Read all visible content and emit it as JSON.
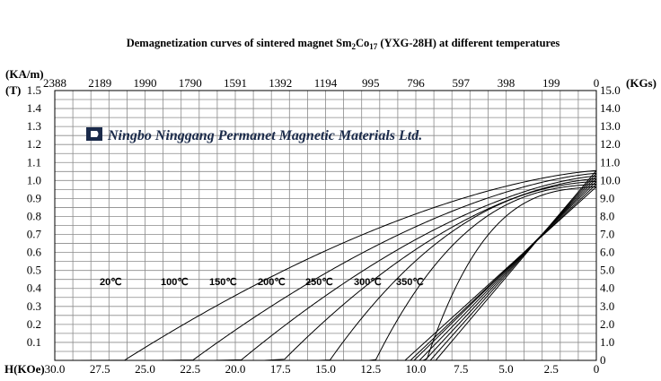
{
  "chart_data": {
    "type": "line",
    "title_main": "Demagnetization curves of sintered magnet Sm",
    "title_sub1": "2",
    "title_co": "Co",
    "title_sub2": "17",
    "title_grade": " (YXG-28H) at different temperatures",
    "watermark": "Ningbo Ninggang Permanet Magnetic Materials Ltd.",
    "top_axis_unit": "(KA/m)",
    "left_axis_unit": "(T)",
    "right_axis_unit": "(KGs)",
    "bottom_axis_unit": "H(KOe)",
    "x_ticks_koe": [
      "30.0",
      "27.5",
      "25.0",
      "22.5",
      "20.0",
      "17.5",
      "15.0",
      "12.5",
      "10.0",
      "7.5",
      "5.0",
      "2.5",
      "0"
    ],
    "x_ticks_kam": [
      "2388",
      "2189",
      "1990",
      "1790",
      "1591",
      "1392",
      "1194",
      "995",
      "796",
      "597",
      "398",
      "199",
      "0"
    ],
    "y_ticks_t": [
      "1.5",
      "1.4",
      "1.3",
      "1.2",
      "1.1",
      "1.0",
      "0.9",
      "0.8",
      "0.7",
      "0.6",
      "0.5",
      "0.4",
      "0.3",
      "0.2",
      "0.1"
    ],
    "y_ticks_kgs": [
      "15.0",
      "14.0",
      "13.0",
      "12.0",
      "11.0",
      "10.0",
      "9.0",
      "8.0",
      "7.0",
      "6.0",
      "5.0",
      "4.0",
      "3.0",
      "2.0",
      "1.0",
      "0"
    ],
    "xlim_koe": [
      30,
      0
    ],
    "ylim_t": [
      0,
      1.5
    ],
    "grid": true,
    "series": [
      {
        "name": "20℃",
        "Br": 1.055,
        "Hcj": 28.8,
        "k": 0.6
      },
      {
        "name": "100℃",
        "Br": 1.04,
        "Hcj": 24.3,
        "k": 0.6
      },
      {
        "name": "150℃",
        "Br": 1.025,
        "Hcj": 21.2,
        "k": 0.6
      },
      {
        "name": "200℃",
        "Br": 1.01,
        "Hcj": 18.4,
        "k": 0.55
      },
      {
        "name": "250℃",
        "Br": 0.995,
        "Hcj": 15.4,
        "k": 0.45
      },
      {
        "name": "300℃",
        "Br": 0.98,
        "Hcj": 12.6,
        "k": 0.38
      },
      {
        "name": "350℃",
        "Br": 0.965,
        "Hcj": 9.6,
        "k": 0.33
      }
    ],
    "b_lines": [
      {
        "Br": 1.055,
        "Hc": 8.9
      },
      {
        "Br": 1.04,
        "Hc": 9.2
      },
      {
        "Br": 1.025,
        "Hc": 9.5
      },
      {
        "Br": 1.01,
        "Hc": 9.8
      },
      {
        "Br": 0.995,
        "Hc": 10.1
      },
      {
        "Br": 0.98,
        "Hc": 10.3
      },
      {
        "Br": 0.965,
        "Hc": 10.6
      }
    ]
  }
}
